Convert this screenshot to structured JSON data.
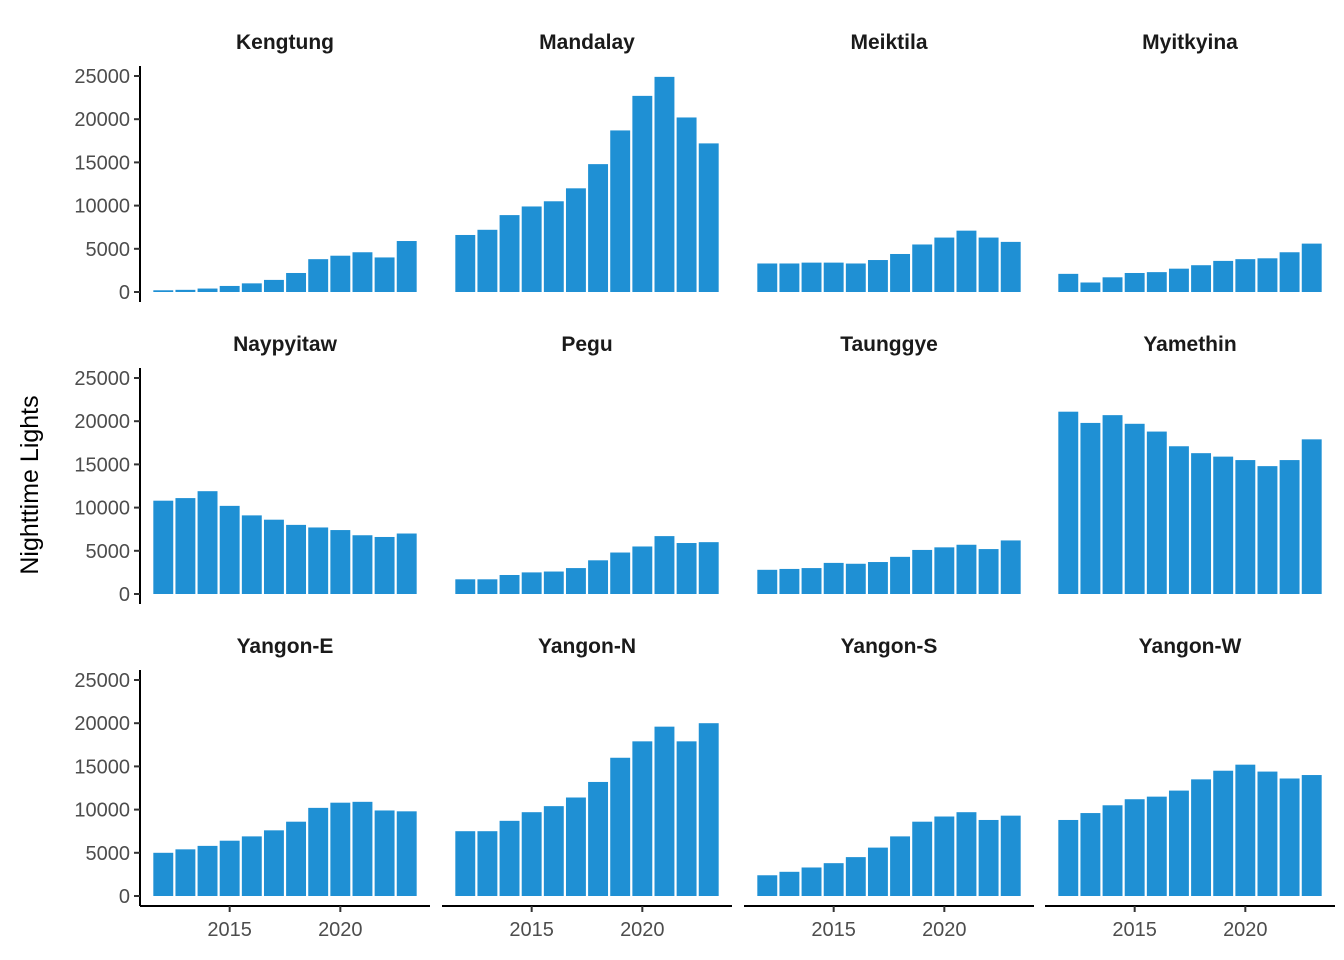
{
  "chart_data": {
    "type": "bar",
    "ylabel": "Nighttime Lights",
    "ylim": [
      0,
      25000
    ],
    "y_ticks": [
      0,
      5000,
      10000,
      15000,
      20000,
      25000
    ],
    "x": [
      2012,
      2013,
      2014,
      2015,
      2016,
      2017,
      2018,
      2019,
      2020,
      2021,
      2022,
      2023
    ],
    "x_ticks": [
      2015,
      2020
    ],
    "bar_color": "#1f90d4",
    "layout": "facet-grid 3 rows x 4 columns, shared axes",
    "panels": [
      {
        "title": "Kengtung",
        "values": [
          200,
          250,
          400,
          700,
          1000,
          1400,
          2200,
          3800,
          4200,
          4600,
          4000,
          5900
        ]
      },
      {
        "title": "Mandalay",
        "values": [
          6600,
          7200,
          8900,
          9900,
          10500,
          12000,
          14800,
          18700,
          22700,
          24900,
          20200,
          17200
        ]
      },
      {
        "title": "Meiktila",
        "values": [
          3300,
          3300,
          3400,
          3400,
          3300,
          3700,
          4400,
          5500,
          6300,
          7100,
          6300,
          5800
        ]
      },
      {
        "title": "Myitkyina",
        "values": [
          2100,
          1100,
          1700,
          2200,
          2300,
          2700,
          3100,
          3600,
          3800,
          3900,
          4600,
          5600
        ]
      },
      {
        "title": "Naypyitaw",
        "values": [
          10800,
          11100,
          11900,
          10200,
          9100,
          8600,
          8000,
          7700,
          7400,
          6800,
          6600,
          7000
        ]
      },
      {
        "title": "Pegu",
        "values": [
          1700,
          1700,
          2200,
          2500,
          2600,
          3000,
          3900,
          4800,
          5500,
          6700,
          5900,
          6000
        ]
      },
      {
        "title": "Taunggye",
        "values": [
          2800,
          2900,
          3000,
          3600,
          3500,
          3700,
          4300,
          5100,
          5400,
          5700,
          5200,
          6200
        ]
      },
      {
        "title": "Yamethin",
        "values": [
          21100,
          19800,
          20700,
          19700,
          18800,
          17100,
          16300,
          15900,
          15500,
          14800,
          15500,
          17900
        ]
      },
      {
        "title": "Yangon-E",
        "values": [
          5000,
          5400,
          5800,
          6400,
          6900,
          7600,
          8600,
          10200,
          10800,
          10900,
          9900,
          9800
        ]
      },
      {
        "title": "Yangon-N",
        "values": [
          7500,
          7500,
          8700,
          9700,
          10400,
          11400,
          13200,
          16000,
          17900,
          19600,
          17900,
          20000
        ]
      },
      {
        "title": "Yangon-S",
        "values": [
          2400,
          2800,
          3300,
          3800,
          4500,
          5600,
          6900,
          8600,
          9200,
          9700,
          8800,
          9300
        ]
      },
      {
        "title": "Yangon-W",
        "values": [
          8800,
          9600,
          10500,
          11200,
          11500,
          12200,
          13500,
          14500,
          15200,
          14400,
          13600,
          14000
        ]
      }
    ]
  }
}
